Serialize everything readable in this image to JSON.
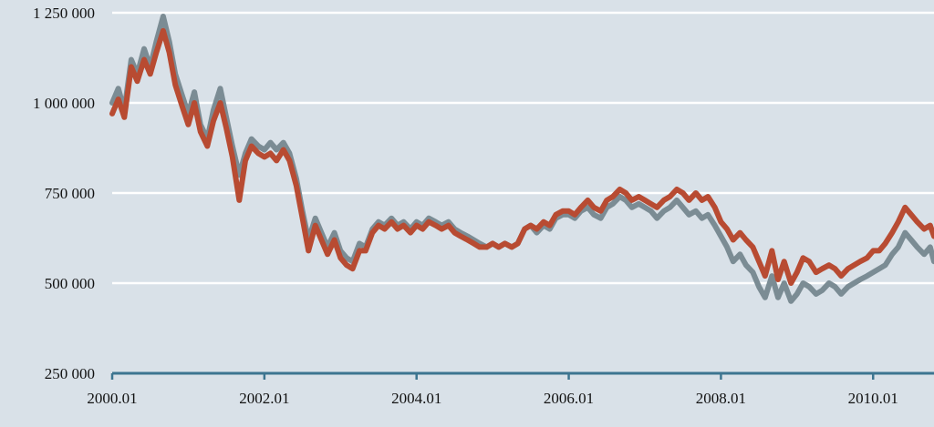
{
  "chart_data": {
    "type": "line",
    "title": "",
    "xlabel": "",
    "ylabel": "",
    "x_range": [
      2000.0,
      2010.8
    ],
    "ylim": [
      250000,
      1250000
    ],
    "y_ticks": [
      {
        "value": 250000,
        "label": "250 000"
      },
      {
        "value": 500000,
        "label": "500 000"
      },
      {
        "value": 750000,
        "label": "750 000"
      },
      {
        "value": 1000000,
        "label": "1 000 000"
      },
      {
        "value": 1250000,
        "label": "1 250 000"
      }
    ],
    "x_ticks": [
      {
        "value": 2000.0,
        "label": "2000.01"
      },
      {
        "value": 2002.0,
        "label": "2002.01"
      },
      {
        "value": 2004.0,
        "label": "2004.01"
      },
      {
        "value": 2006.0,
        "label": "2006.01"
      },
      {
        "value": 2008.0,
        "label": "2008.01"
      },
      {
        "value": 2010.0,
        "label": "2010.01"
      }
    ],
    "grid": "horizontal",
    "legend": "none",
    "series": [
      {
        "color": "#7b8c94",
        "points": [
          [
            2000.0,
            1000000
          ],
          [
            2000.08,
            1040000
          ],
          [
            2000.16,
            980000
          ],
          [
            2000.25,
            1120000
          ],
          [
            2000.33,
            1080000
          ],
          [
            2000.42,
            1150000
          ],
          [
            2000.5,
            1100000
          ],
          [
            2000.58,
            1170000
          ],
          [
            2000.67,
            1240000
          ],
          [
            2000.75,
            1170000
          ],
          [
            2000.83,
            1080000
          ],
          [
            2000.92,
            1020000
          ],
          [
            2001.0,
            970000
          ],
          [
            2001.08,
            1030000
          ],
          [
            2001.16,
            940000
          ],
          [
            2001.25,
            900000
          ],
          [
            2001.33,
            980000
          ],
          [
            2001.42,
            1040000
          ],
          [
            2001.5,
            960000
          ],
          [
            2001.58,
            880000
          ],
          [
            2001.67,
            800000
          ],
          [
            2001.75,
            860000
          ],
          [
            2001.83,
            900000
          ],
          [
            2001.92,
            880000
          ],
          [
            2002.0,
            870000
          ],
          [
            2002.08,
            890000
          ],
          [
            2002.16,
            870000
          ],
          [
            2002.25,
            890000
          ],
          [
            2002.33,
            860000
          ],
          [
            2002.42,
            790000
          ],
          [
            2002.5,
            700000
          ],
          [
            2002.58,
            620000
          ],
          [
            2002.67,
            680000
          ],
          [
            2002.75,
            640000
          ],
          [
            2002.83,
            600000
          ],
          [
            2002.92,
            640000
          ],
          [
            2003.0,
            590000
          ],
          [
            2003.08,
            570000
          ],
          [
            2003.16,
            560000
          ],
          [
            2003.25,
            610000
          ],
          [
            2003.33,
            600000
          ],
          [
            2003.42,
            650000
          ],
          [
            2003.5,
            670000
          ],
          [
            2003.58,
            660000
          ],
          [
            2003.67,
            680000
          ],
          [
            2003.75,
            660000
          ],
          [
            2003.83,
            670000
          ],
          [
            2003.92,
            650000
          ],
          [
            2004.0,
            670000
          ],
          [
            2004.08,
            660000
          ],
          [
            2004.16,
            680000
          ],
          [
            2004.25,
            670000
          ],
          [
            2004.33,
            660000
          ],
          [
            2004.42,
            670000
          ],
          [
            2004.5,
            650000
          ],
          [
            2004.58,
            640000
          ],
          [
            2004.67,
            630000
          ],
          [
            2004.75,
            620000
          ],
          [
            2004.83,
            610000
          ],
          [
            2004.92,
            600000
          ],
          [
            2005.0,
            610000
          ],
          [
            2005.08,
            600000
          ],
          [
            2005.16,
            610000
          ],
          [
            2005.25,
            600000
          ],
          [
            2005.33,
            610000
          ],
          [
            2005.42,
            650000
          ],
          [
            2005.5,
            660000
          ],
          [
            2005.58,
            640000
          ],
          [
            2005.67,
            660000
          ],
          [
            2005.75,
            650000
          ],
          [
            2005.83,
            680000
          ],
          [
            2005.92,
            690000
          ],
          [
            2006.0,
            690000
          ],
          [
            2006.08,
            680000
          ],
          [
            2006.16,
            700000
          ],
          [
            2006.25,
            710000
          ],
          [
            2006.33,
            690000
          ],
          [
            2006.42,
            680000
          ],
          [
            2006.5,
            710000
          ],
          [
            2006.58,
            720000
          ],
          [
            2006.67,
            740000
          ],
          [
            2006.75,
            730000
          ],
          [
            2006.83,
            710000
          ],
          [
            2006.92,
            720000
          ],
          [
            2007.0,
            710000
          ],
          [
            2007.08,
            700000
          ],
          [
            2007.16,
            680000
          ],
          [
            2007.25,
            700000
          ],
          [
            2007.33,
            710000
          ],
          [
            2007.42,
            730000
          ],
          [
            2007.5,
            710000
          ],
          [
            2007.58,
            690000
          ],
          [
            2007.67,
            700000
          ],
          [
            2007.75,
            680000
          ],
          [
            2007.83,
            690000
          ],
          [
            2007.92,
            660000
          ],
          [
            2008.0,
            630000
          ],
          [
            2008.08,
            600000
          ],
          [
            2008.16,
            560000
          ],
          [
            2008.25,
            580000
          ],
          [
            2008.33,
            550000
          ],
          [
            2008.42,
            530000
          ],
          [
            2008.5,
            490000
          ],
          [
            2008.58,
            460000
          ],
          [
            2008.67,
            520000
          ],
          [
            2008.75,
            460000
          ],
          [
            2008.83,
            500000
          ],
          [
            2008.92,
            450000
          ],
          [
            2009.0,
            470000
          ],
          [
            2009.08,
            500000
          ],
          [
            2009.16,
            490000
          ],
          [
            2009.25,
            470000
          ],
          [
            2009.33,
            480000
          ],
          [
            2009.42,
            500000
          ],
          [
            2009.5,
            490000
          ],
          [
            2009.58,
            470000
          ],
          [
            2009.67,
            490000
          ],
          [
            2009.75,
            500000
          ],
          [
            2009.83,
            510000
          ],
          [
            2009.92,
            520000
          ],
          [
            2010.0,
            530000
          ],
          [
            2010.08,
            540000
          ],
          [
            2010.16,
            550000
          ],
          [
            2010.25,
            580000
          ],
          [
            2010.33,
            600000
          ],
          [
            2010.42,
            640000
          ],
          [
            2010.5,
            620000
          ],
          [
            2010.58,
            600000
          ],
          [
            2010.67,
            580000
          ],
          [
            2010.75,
            600000
          ],
          [
            2010.8,
            560000
          ]
        ]
      },
      {
        "color": "#b84b32",
        "points": [
          [
            2000.0,
            970000
          ],
          [
            2000.08,
            1010000
          ],
          [
            2000.16,
            960000
          ],
          [
            2000.25,
            1100000
          ],
          [
            2000.33,
            1060000
          ],
          [
            2000.42,
            1120000
          ],
          [
            2000.5,
            1080000
          ],
          [
            2000.58,
            1140000
          ],
          [
            2000.67,
            1200000
          ],
          [
            2000.75,
            1140000
          ],
          [
            2000.83,
            1050000
          ],
          [
            2000.92,
            990000
          ],
          [
            2001.0,
            940000
          ],
          [
            2001.08,
            1000000
          ],
          [
            2001.16,
            920000
          ],
          [
            2001.25,
            880000
          ],
          [
            2001.33,
            950000
          ],
          [
            2001.42,
            1000000
          ],
          [
            2001.5,
            930000
          ],
          [
            2001.58,
            850000
          ],
          [
            2001.67,
            730000
          ],
          [
            2001.75,
            840000
          ],
          [
            2001.83,
            880000
          ],
          [
            2001.92,
            860000
          ],
          [
            2002.0,
            850000
          ],
          [
            2002.08,
            860000
          ],
          [
            2002.16,
            840000
          ],
          [
            2002.25,
            870000
          ],
          [
            2002.33,
            840000
          ],
          [
            2002.42,
            770000
          ],
          [
            2002.5,
            680000
          ],
          [
            2002.58,
            590000
          ],
          [
            2002.67,
            660000
          ],
          [
            2002.75,
            620000
          ],
          [
            2002.83,
            580000
          ],
          [
            2002.92,
            620000
          ],
          [
            2003.0,
            570000
          ],
          [
            2003.08,
            550000
          ],
          [
            2003.16,
            540000
          ],
          [
            2003.25,
            590000
          ],
          [
            2003.33,
            590000
          ],
          [
            2003.42,
            640000
          ],
          [
            2003.5,
            660000
          ],
          [
            2003.58,
            650000
          ],
          [
            2003.67,
            670000
          ],
          [
            2003.75,
            650000
          ],
          [
            2003.83,
            660000
          ],
          [
            2003.92,
            640000
          ],
          [
            2004.0,
            660000
          ],
          [
            2004.08,
            650000
          ],
          [
            2004.16,
            670000
          ],
          [
            2004.25,
            660000
          ],
          [
            2004.33,
            650000
          ],
          [
            2004.42,
            660000
          ],
          [
            2004.5,
            640000
          ],
          [
            2004.58,
            630000
          ],
          [
            2004.67,
            620000
          ],
          [
            2004.75,
            610000
          ],
          [
            2004.83,
            600000
          ],
          [
            2004.92,
            600000
          ],
          [
            2005.0,
            610000
          ],
          [
            2005.08,
            600000
          ],
          [
            2005.16,
            610000
          ],
          [
            2005.25,
            600000
          ],
          [
            2005.33,
            610000
          ],
          [
            2005.42,
            650000
          ],
          [
            2005.5,
            660000
          ],
          [
            2005.58,
            650000
          ],
          [
            2005.67,
            670000
          ],
          [
            2005.75,
            660000
          ],
          [
            2005.83,
            690000
          ],
          [
            2005.92,
            700000
          ],
          [
            2006.0,
            700000
          ],
          [
            2006.08,
            690000
          ],
          [
            2006.16,
            710000
          ],
          [
            2006.25,
            730000
          ],
          [
            2006.33,
            710000
          ],
          [
            2006.42,
            700000
          ],
          [
            2006.5,
            730000
          ],
          [
            2006.58,
            740000
          ],
          [
            2006.67,
            760000
          ],
          [
            2006.75,
            750000
          ],
          [
            2006.83,
            730000
          ],
          [
            2006.92,
            740000
          ],
          [
            2007.0,
            730000
          ],
          [
            2007.08,
            720000
          ],
          [
            2007.16,
            710000
          ],
          [
            2007.25,
            730000
          ],
          [
            2007.33,
            740000
          ],
          [
            2007.42,
            760000
          ],
          [
            2007.5,
            750000
          ],
          [
            2007.58,
            730000
          ],
          [
            2007.67,
            750000
          ],
          [
            2007.75,
            730000
          ],
          [
            2007.83,
            740000
          ],
          [
            2007.92,
            710000
          ],
          [
            2008.0,
            670000
          ],
          [
            2008.08,
            650000
          ],
          [
            2008.16,
            620000
          ],
          [
            2008.25,
            640000
          ],
          [
            2008.33,
            620000
          ],
          [
            2008.42,
            600000
          ],
          [
            2008.5,
            560000
          ],
          [
            2008.58,
            520000
          ],
          [
            2008.67,
            590000
          ],
          [
            2008.75,
            510000
          ],
          [
            2008.83,
            560000
          ],
          [
            2008.92,
            500000
          ],
          [
            2009.0,
            530000
          ],
          [
            2009.08,
            570000
          ],
          [
            2009.16,
            560000
          ],
          [
            2009.25,
            530000
          ],
          [
            2009.33,
            540000
          ],
          [
            2009.42,
            550000
          ],
          [
            2009.5,
            540000
          ],
          [
            2009.58,
            520000
          ],
          [
            2009.67,
            540000
          ],
          [
            2009.75,
            550000
          ],
          [
            2009.83,
            560000
          ],
          [
            2009.92,
            570000
          ],
          [
            2010.0,
            590000
          ],
          [
            2010.08,
            590000
          ],
          [
            2010.16,
            610000
          ],
          [
            2010.25,
            640000
          ],
          [
            2010.33,
            670000
          ],
          [
            2010.42,
            710000
          ],
          [
            2010.5,
            690000
          ],
          [
            2010.58,
            670000
          ],
          [
            2010.67,
            650000
          ],
          [
            2010.75,
            660000
          ],
          [
            2010.8,
            630000
          ]
        ]
      }
    ]
  }
}
